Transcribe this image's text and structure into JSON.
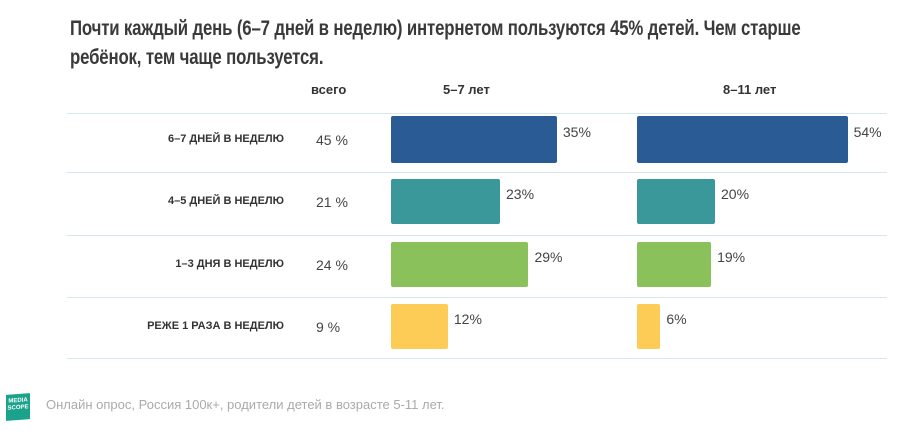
{
  "chart_data": {
    "type": "bar",
    "orientation": "horizontal",
    "title": "Почти каждый день (6–7 дней в неделю) интернетом пользуются 45% детей. Чем старше ребёнок, тем чаще пользуется.",
    "total_header": "всего",
    "categories": [
      "6–7 ДНЕЙ В НЕДЕЛЮ",
      "4–5 ДНЕЙ В НЕДЕЛЮ",
      "1–3 ДНЯ В НЕДЕЛЮ",
      "РЕЖЕ 1 РАЗА В НЕДЕЛЮ"
    ],
    "totals": [
      "45 %",
      "21 %",
      "24 %",
      "9 %"
    ],
    "total_values": [
      45,
      21,
      24,
      9
    ],
    "series": [
      {
        "name": "5–7 лет",
        "values": [
          35,
          23,
          29,
          12
        ],
        "labels": [
          "35%",
          "23%",
          "29%",
          "12%"
        ]
      },
      {
        "name": "8–11 лет",
        "values": [
          54,
          20,
          19,
          6
        ],
        "labels": [
          "54%",
          "20%",
          "19%",
          "6%"
        ]
      }
    ],
    "colors": [
      "#2a5b95",
      "#3a979a",
      "#8bc15a",
      "#fccc56"
    ],
    "unit": "%",
    "grid": false
  },
  "footer": {
    "note": "Онлайн опрос, Россия 100к+, родители детей в возрасте 5-11 лет.",
    "logo_text": "MEDIA SCOPE"
  }
}
